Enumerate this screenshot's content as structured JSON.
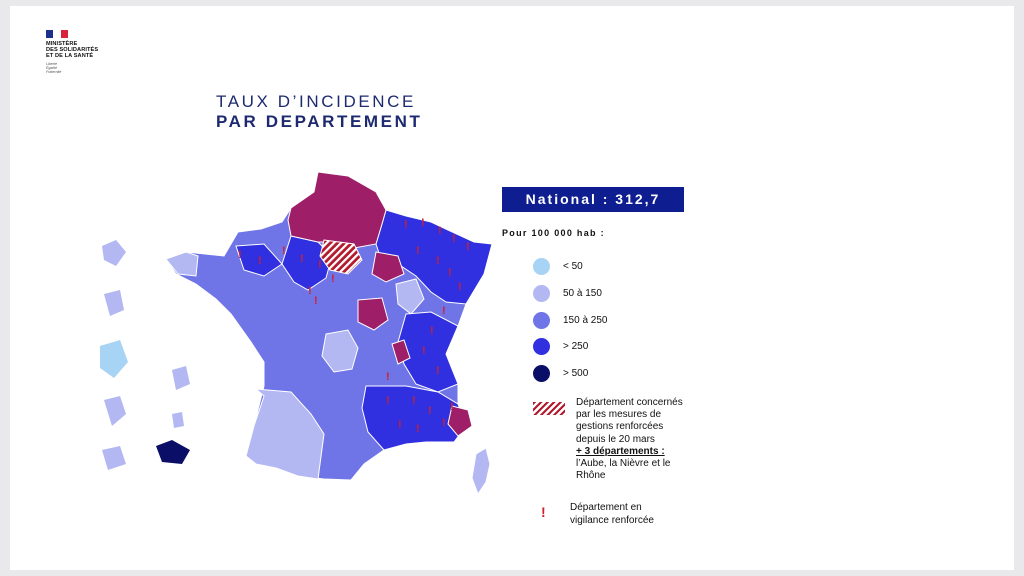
{
  "logo": {
    "lines": [
      "MINISTÈRE",
      "DES SOLIDARITÉS",
      "ET DE LA SANTÉ"
    ],
    "motto": [
      "Liberté",
      "Égalité",
      "Fraternité"
    ]
  },
  "title": {
    "line1": "TAUX D’INCIDENCE",
    "line2": "PAR DEPARTEMENT"
  },
  "national": "National : 312,7",
  "per_unit": "Pour 100 000 hab :",
  "colors": {
    "lt50": "#a7d3f4",
    "r50_150": "#b3b8f3",
    "r150_250": "#6f74e6",
    "gt250": "#3030e0",
    "gt500": "#0b0e66",
    "reinforced": "#9e1e68",
    "alert": "#d11f2a"
  },
  "legend": [
    {
      "label": "< 50",
      "color_key": "lt50"
    },
    {
      "label": "50 à 150",
      "color_key": "r50_150"
    },
    {
      "label": "150 à 250",
      "color_key": "r150_250"
    },
    {
      "label": "> 250",
      "color_key": "gt250"
    },
    {
      "label": "> 500",
      "color_key": "gt500"
    }
  ],
  "hatched_note": {
    "line1": "Département concernés",
    "line2": "par les mesures de",
    "line3": "gestions renforcées",
    "line4": "depuis le 20 mars",
    "bold": "+ 3 départements :",
    "line5": "l’Aube, la Nièvre et le",
    "line6": "Rhône"
  },
  "vigilance": {
    "mark": "!",
    "line1": "Département en",
    "line2": "vigilance renforcée"
  }
}
